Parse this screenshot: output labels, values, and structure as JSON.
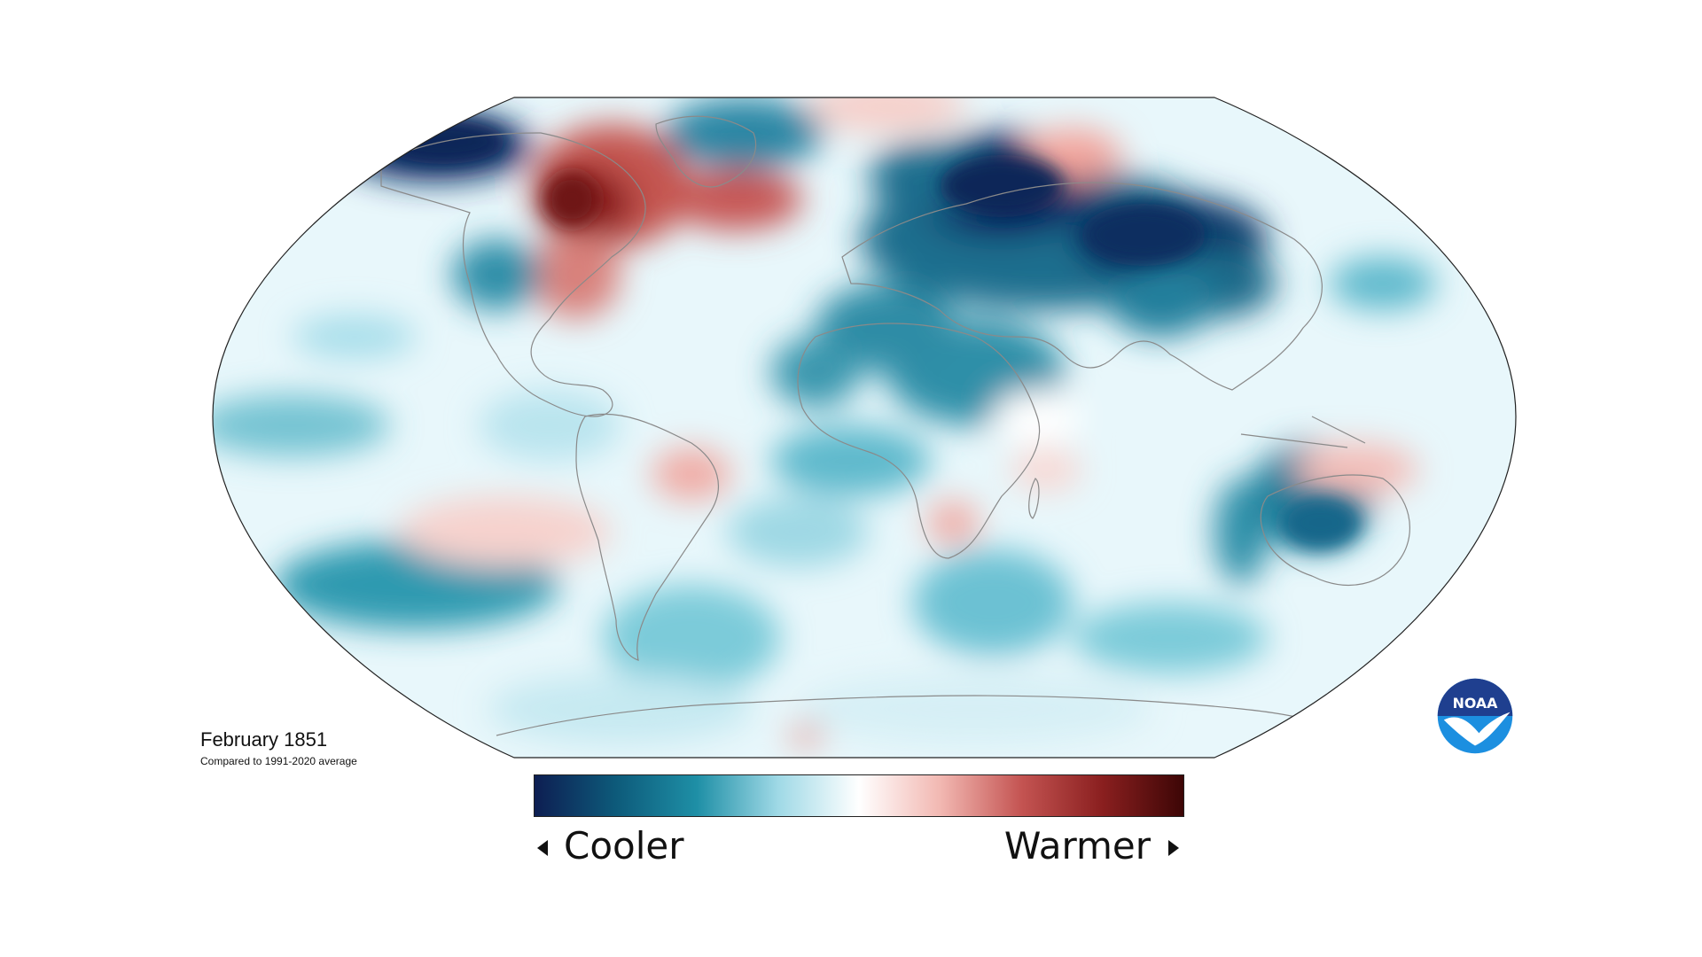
{
  "caption": {
    "title": "February 1851",
    "subtitle": "Compared to 1991-2020 average"
  },
  "legend": {
    "cool_label": "Cooler",
    "warm_label": "Warmer",
    "colors": [
      "#0d1e52",
      "#0d5a7a",
      "#1e8fa6",
      "#9fd9e6",
      "#ffffff",
      "#f2b8b2",
      "#c45452",
      "#8a1f1f",
      "#3d0606"
    ]
  },
  "logo": {
    "text": "NOAA",
    "colors": {
      "top": "#1f3f8f",
      "bottom": "#1c8fe0",
      "bird": "#ffffff"
    }
  },
  "map": {
    "ocean_base": "#e6f6fa",
    "coast_color": "#8a8a8a",
    "anomaly_regions": [
      {
        "name": "Alaska",
        "tone": "very-cool"
      },
      {
        "name": "Eastern Canada / NE USA",
        "tone": "very-warm"
      },
      {
        "name": "Greenland Sea",
        "tone": "warm"
      },
      {
        "name": "Eurasia",
        "tone": "very-cool"
      },
      {
        "name": "North Africa",
        "tone": "cool"
      },
      {
        "name": "Brazil",
        "tone": "slight-warm"
      },
      {
        "name": "Southern Africa",
        "tone": "slight-warm"
      },
      {
        "name": "Australia",
        "tone": "cool"
      },
      {
        "name": "Maritime Continent",
        "tone": "slight-warm"
      },
      {
        "name": "South Pacific",
        "tone": "cool"
      }
    ]
  }
}
